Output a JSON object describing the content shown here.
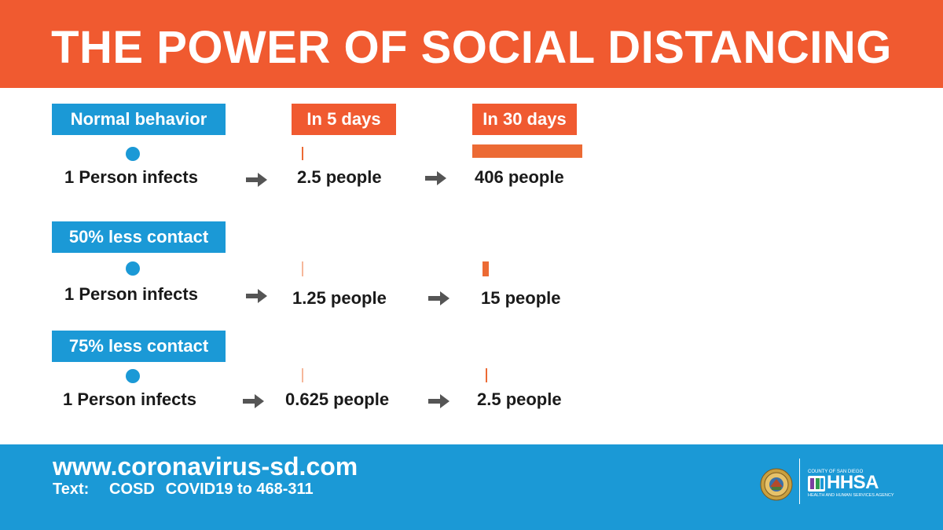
{
  "header": {
    "title": "THE POWER OF SOCIAL DISTANCING"
  },
  "columns": {
    "day5_label": "In 5 days",
    "day30_label": "In 30 days"
  },
  "rows": [
    {
      "label": "Normal behavior",
      "start": "1 Person infects",
      "day5": "2.5 people",
      "day30": "406 people",
      "day5_value": 2.5,
      "day30_value": 406
    },
    {
      "label": "50% less contact",
      "start": "1 Person infects",
      "day5": "1.25 people",
      "day30": "15 people",
      "day5_value": 1.25,
      "day30_value": 15
    },
    {
      "label": "75% less contact",
      "start": "1 Person infects",
      "day5": "0.625 people",
      "day30": "2.5 people",
      "day5_value": 0.625,
      "day30_value": 2.5
    }
  ],
  "footer": {
    "url": "www.coronavirus-sd.com",
    "text_prefix": "Text:",
    "text_keyword": "COSD",
    "text_message": "COVID19 to 468-311",
    "logo_top": "COUNTY OF SAN DIEGO",
    "logo_name": "HHSA",
    "logo_bottom": "HEALTH AND HUMAN SERVICES AGENCY"
  },
  "icons": {
    "arrow": "arrow-right-icon",
    "seal": "county-seal-icon",
    "dot": "person-dot-icon"
  },
  "colors": {
    "orange": "#f05a30",
    "blue": "#1b99d6",
    "bar": "#ec6a34",
    "text": "#1a1a1a"
  }
}
